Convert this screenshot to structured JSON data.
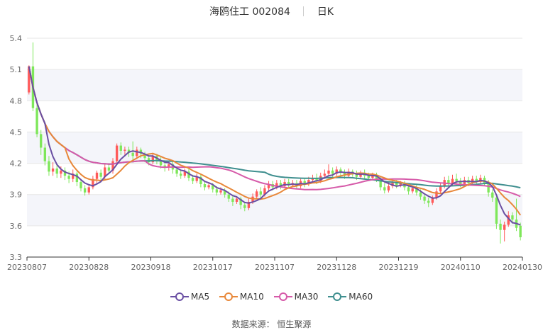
{
  "title": {
    "name": "海鸥住工",
    "code": "002084",
    "period": "日K"
  },
  "source": "数据来源： 恒生聚源",
  "colors": {
    "up": "#ff5a5a",
    "down": "#7ee75a",
    "ma5": "#6a4fa3",
    "ma10": "#e8883a",
    "ma30": "#d65aa9",
    "ma60": "#3f8f8f"
  },
  "chart_data": {
    "type": "candlestick",
    "y_ticks": [
      "5.4",
      "5.1",
      "4.8",
      "4.5",
      "4.2",
      "3.9",
      "3.6",
      "3.3"
    ],
    "ylim": [
      3.3,
      5.4
    ],
    "x_ticks": [
      "20230807",
      "20230828",
      "20230918",
      "20231017",
      "20231107",
      "20231128",
      "20231219",
      "20240110",
      "20240130"
    ],
    "legend": [
      "MA5",
      "MA10",
      "MA30",
      "MA60"
    ],
    "candles": [
      [
        4.88,
        5.13,
        4.86,
        5.14
      ],
      [
        5.13,
        4.73,
        4.7,
        5.36
      ],
      [
        4.73,
        4.48,
        4.45,
        4.79
      ],
      [
        4.48,
        4.35,
        4.28,
        4.52
      ],
      [
        4.35,
        4.22,
        4.18,
        4.39
      ],
      [
        4.22,
        4.12,
        4.08,
        4.27
      ],
      [
        4.12,
        4.15,
        4.08,
        4.21
      ],
      [
        4.15,
        4.1,
        4.06,
        4.19
      ],
      [
        4.1,
        4.13,
        4.06,
        4.17
      ],
      [
        4.13,
        4.08,
        4.04,
        4.16
      ],
      [
        4.08,
        4.05,
        4.01,
        4.12
      ],
      [
        4.05,
        4.1,
        4.02,
        4.14
      ],
      [
        4.1,
        4.02,
        3.98,
        4.12
      ],
      [
        4.02,
        3.96,
        3.93,
        4.05
      ],
      [
        3.96,
        3.92,
        3.89,
        3.99
      ],
      [
        3.92,
        3.97,
        3.9,
        4.0
      ],
      [
        3.97,
        4.05,
        3.95,
        4.08
      ],
      [
        4.05,
        4.11,
        4.01,
        4.13
      ],
      [
        4.11,
        4.07,
        4.03,
        4.14
      ],
      [
        4.07,
        4.16,
        4.04,
        4.19
      ],
      [
        4.16,
        4.13,
        4.1,
        4.2
      ],
      [
        4.13,
        4.22,
        4.1,
        4.25
      ],
      [
        4.22,
        4.37,
        4.19,
        4.39
      ],
      [
        4.37,
        4.32,
        4.28,
        4.4
      ],
      [
        4.32,
        4.33,
        4.28,
        4.36
      ],
      [
        4.33,
        4.3,
        4.26,
        4.36
      ],
      [
        4.3,
        4.27,
        4.23,
        4.41
      ],
      [
        4.27,
        4.33,
        4.24,
        4.36
      ],
      [
        4.33,
        4.29,
        4.25,
        4.35
      ],
      [
        4.29,
        4.25,
        4.21,
        4.31
      ],
      [
        4.25,
        4.21,
        4.18,
        4.28
      ],
      [
        4.21,
        4.27,
        4.19,
        4.3
      ],
      [
        4.27,
        4.23,
        4.19,
        4.29
      ],
      [
        4.23,
        4.18,
        4.15,
        4.26
      ],
      [
        4.18,
        4.16,
        4.12,
        4.21
      ],
      [
        4.16,
        4.19,
        4.13,
        4.22
      ],
      [
        4.19,
        4.14,
        4.1,
        4.22
      ],
      [
        4.14,
        4.1,
        4.07,
        4.17
      ],
      [
        4.1,
        4.08,
        4.05,
        4.13
      ],
      [
        4.08,
        4.12,
        4.06,
        4.15
      ],
      [
        4.12,
        4.06,
        4.03,
        4.15
      ],
      [
        4.06,
        4.03,
        4.0,
        4.09
      ],
      [
        4.03,
        4.07,
        4.01,
        4.1
      ],
      [
        4.07,
        4.0,
        3.97,
        4.09
      ],
      [
        4.0,
        3.97,
        3.94,
        4.03
      ],
      [
        3.97,
        3.99,
        3.95,
        4.02
      ],
      [
        3.99,
        3.95,
        3.92,
        4.01
      ],
      [
        3.95,
        3.92,
        3.89,
        3.98
      ],
      [
        3.92,
        3.94,
        3.9,
        3.97
      ],
      [
        3.94,
        3.9,
        3.87,
        3.96
      ],
      [
        3.9,
        3.86,
        3.83,
        3.93
      ],
      [
        3.86,
        3.83,
        3.79,
        3.89
      ],
      [
        3.83,
        3.86,
        3.81,
        3.88
      ],
      [
        3.86,
        3.8,
        3.76,
        3.88
      ],
      [
        3.8,
        3.77,
        3.74,
        3.83
      ],
      [
        3.77,
        3.83,
        3.75,
        3.86
      ],
      [
        3.83,
        3.88,
        3.81,
        3.91
      ],
      [
        3.88,
        3.93,
        3.86,
        3.95
      ],
      [
        3.93,
        3.9,
        3.87,
        3.97
      ],
      [
        3.9,
        3.96,
        3.88,
        3.99
      ],
      [
        3.96,
        4.0,
        3.94,
        4.03
      ],
      [
        4.0,
        3.97,
        3.94,
        4.03
      ],
      [
        3.97,
        4.01,
        3.95,
        4.04
      ],
      [
        4.01,
        3.98,
        3.95,
        4.04
      ],
      [
        3.98,
        4.02,
        3.96,
        4.05
      ],
      [
        4.02,
        3.99,
        3.96,
        4.05
      ],
      [
        3.99,
        4.01,
        3.97,
        4.04
      ],
      [
        4.01,
        3.98,
        3.95,
        4.04
      ],
      [
        3.98,
        4.03,
        3.96,
        4.05
      ],
      [
        4.03,
        4.0,
        3.97,
        4.06
      ],
      [
        4.0,
        4.04,
        3.98,
        4.07
      ],
      [
        4.04,
        4.06,
        4.01,
        4.09
      ],
      [
        4.06,
        4.03,
        4.0,
        4.1
      ],
      [
        4.03,
        4.08,
        4.01,
        4.11
      ],
      [
        4.08,
        4.1,
        4.05,
        4.14
      ],
      [
        4.1,
        4.13,
        4.08,
        4.19
      ],
      [
        4.13,
        4.1,
        4.07,
        4.16
      ],
      [
        4.1,
        4.14,
        4.08,
        4.17
      ],
      [
        4.14,
        4.11,
        4.08,
        4.16
      ],
      [
        4.11,
        4.08,
        4.05,
        4.14
      ],
      [
        4.08,
        4.12,
        4.06,
        4.15
      ],
      [
        4.12,
        4.1,
        4.07,
        4.14
      ],
      [
        4.1,
        4.07,
        4.04,
        4.13
      ],
      [
        4.07,
        4.11,
        4.05,
        4.13
      ],
      [
        4.11,
        4.08,
        4.05,
        4.14
      ],
      [
        4.08,
        4.06,
        4.03,
        4.11
      ],
      [
        4.06,
        4.09,
        4.04,
        4.11
      ],
      [
        4.09,
        4.05,
        4.02,
        4.11
      ],
      [
        4.05,
        3.97,
        3.94,
        4.07
      ],
      [
        3.97,
        3.94,
        3.91,
        4.01
      ],
      [
        3.94,
        3.98,
        3.92,
        4.02
      ],
      [
        3.98,
        4.02,
        3.96,
        4.04
      ],
      [
        4.02,
        3.99,
        3.96,
        4.04
      ],
      [
        3.99,
        4.01,
        3.97,
        4.03
      ],
      [
        4.01,
        3.97,
        3.94,
        4.03
      ],
      [
        3.97,
        3.93,
        3.9,
        3.99
      ],
      [
        3.93,
        3.96,
        3.91,
        3.98
      ],
      [
        3.96,
        3.92,
        3.89,
        3.99
      ],
      [
        3.92,
        3.88,
        3.85,
        3.95
      ],
      [
        3.88,
        3.84,
        3.81,
        3.91
      ],
      [
        3.84,
        3.82,
        3.78,
        3.87
      ],
      [
        3.82,
        3.87,
        3.8,
        3.89
      ],
      [
        3.87,
        3.93,
        3.85,
        3.96
      ],
      [
        3.93,
        3.98,
        3.91,
        4.01
      ],
      [
        3.98,
        4.04,
        3.96,
        4.07
      ],
      [
        4.04,
        4.01,
        3.98,
        4.08
      ],
      [
        4.01,
        4.05,
        3.99,
        4.09
      ],
      [
        4.05,
        4.03,
        4.0,
        4.1
      ],
      [
        4.03,
        4.0,
        3.97,
        4.06
      ],
      [
        4.0,
        4.04,
        3.98,
        4.07
      ],
      [
        4.04,
        4.01,
        3.98,
        4.07
      ],
      [
        4.01,
        4.05,
        3.99,
        4.08
      ],
      [
        4.05,
        4.02,
        3.99,
        4.08
      ],
      [
        4.02,
        4.06,
        4.0,
        4.09
      ],
      [
        4.06,
        4.01,
        3.98,
        4.08
      ],
      [
        4.01,
        3.92,
        3.88,
        4.04
      ],
      [
        3.92,
        3.87,
        3.83,
        3.95
      ],
      [
        3.87,
        3.62,
        3.57,
        3.9
      ],
      [
        3.62,
        3.56,
        3.43,
        3.66
      ],
      [
        3.56,
        3.61,
        3.45,
        3.64
      ],
      [
        3.61,
        3.7,
        3.59,
        3.74
      ],
      [
        3.7,
        3.66,
        3.62,
        3.73
      ],
      [
        3.66,
        3.58,
        3.55,
        3.86
      ],
      [
        3.6,
        3.49,
        3.46,
        3.63
      ]
    ]
  }
}
